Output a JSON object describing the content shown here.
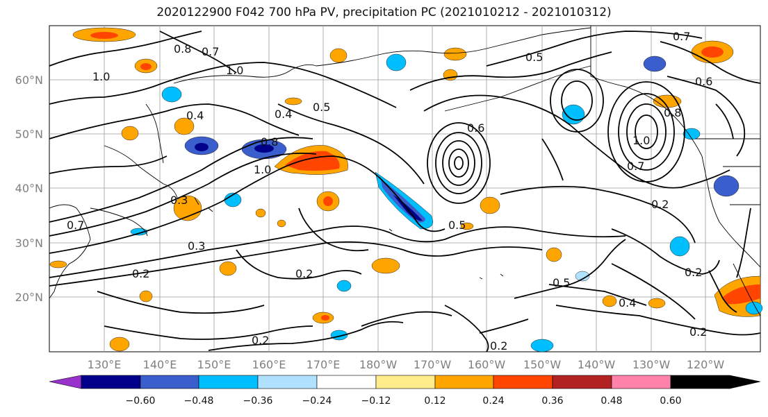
{
  "title": "2020122900 F042 700 hPa PV, precipitation PC (2021010212 - 2021010312)",
  "map": {
    "lat_ticks": [
      "60°N",
      "50°N",
      "40°N",
      "30°N",
      "20°N"
    ],
    "lon_ticks": [
      "130°E",
      "140°E",
      "150°E",
      "160°E",
      "170°E",
      "180°W",
      "170°W",
      "160°W",
      "150°W",
      "140°W",
      "130°W",
      "120°W"
    ],
    "contour_labels": [
      "1.0",
      "0.7",
      "0.8",
      "0.4",
      "0.3",
      "0.5",
      "0.2",
      "0.6",
      "0.3",
      "0.2",
      "0.5",
      "0.7",
      "0.2",
      "0.2",
      "0.5",
      "0.4",
      "0.6",
      "0.7",
      "1.0",
      "0.8",
      "0.5"
    ]
  },
  "colorbar": {
    "ticks": [
      "−0.60",
      "−0.48",
      "−0.36",
      "−0.24",
      "−0.12",
      "0.12",
      "0.24",
      "0.36",
      "0.48",
      "0.60"
    ],
    "colors": [
      "#9932cc",
      "#00008b",
      "#3a5fcd",
      "#00bfff",
      "#b0e2ff",
      "#ffffff",
      "#ffec8b",
      "#ffa500",
      "#ff4500",
      "#b22222",
      "#ff82ab"
    ]
  }
}
